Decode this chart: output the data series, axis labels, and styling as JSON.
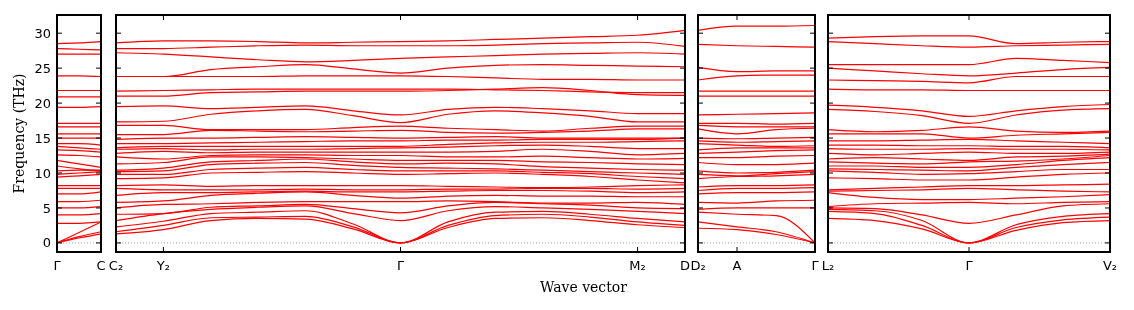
{
  "chart_data": [
    {
      "type": "line",
      "ylabel": "Frequency (THz)",
      "categories": [
        "Γ",
        null,
        "C"
      ],
      "ylim": [
        -1.3,
        32.6
      ],
      "yticks": [
        0,
        5,
        10,
        15,
        20,
        25,
        30
      ],
      "ref_lines": [
        {
          "axis": "y",
          "value": 0,
          "label": null,
          "color": "#8080ff",
          "line_style": "dotted"
        }
      ],
      "series": [
        {
          "color": "#ff0000",
          "values": [
            0,
            0.7,
            1.3
          ]
        },
        {
          "color": "#ff0000",
          "values": [
            0,
            0.9,
            1.6
          ]
        },
        {
          "color": "#ff0000",
          "values": [
            0,
            1.5,
            3.0
          ]
        },
        {
          "color": "#ff0000",
          "values": [
            2.8,
            2.8,
            3.0
          ]
        },
        {
          "color": "#ff0000",
          "values": [
            4.0,
            4.0,
            4.2
          ]
        },
        {
          "color": "#ff0000",
          "values": [
            5.0,
            5.0,
            5.2
          ]
        },
        {
          "color": "#ff0000",
          "values": [
            5.9,
            5.9,
            6.1
          ]
        },
        {
          "color": "#ff0000",
          "values": [
            7.0,
            7.0,
            7.3
          ]
        },
        {
          "color": "#ff0000",
          "values": [
            7.8,
            7.8,
            7.8
          ]
        },
        {
          "color": "#ff0000",
          "values": [
            8.2,
            8.2,
            8.2
          ]
        },
        {
          "color": "#ff0000",
          "values": [
            9.4,
            9.6,
            9.8
          ]
        },
        {
          "color": "#ff0000",
          "values": [
            9.8,
            10.0,
            10.2
          ]
        },
        {
          "color": "#ff0000",
          "values": [
            10.3,
            10.4,
            10.4
          ]
        },
        {
          "color": "#ff0000",
          "values": [
            11.0,
            10.6,
            10.3
          ]
        },
        {
          "color": "#ff0000",
          "values": [
            11.8,
            11.3,
            10.8
          ]
        },
        {
          "color": "#ff0000",
          "values": [
            12.6,
            12.5,
            12.3
          ]
        },
        {
          "color": "#ff0000",
          "values": [
            13.3,
            13.2,
            13.0
          ]
        },
        {
          "color": "#ff0000",
          "values": [
            13.8,
            13.6,
            13.4
          ]
        },
        {
          "color": "#ff0000",
          "values": [
            14.2,
            14.2,
            14.0
          ]
        },
        {
          "color": "#ff0000",
          "values": [
            15.0,
            15.0,
            15.0
          ]
        },
        {
          "color": "#ff0000",
          "values": [
            15.6,
            15.6,
            15.6
          ]
        },
        {
          "color": "#ff0000",
          "values": [
            16.6,
            16.6,
            16.6
          ]
        },
        {
          "color": "#ff0000",
          "values": [
            17.1,
            17.1,
            17.1
          ]
        },
        {
          "color": "#ff0000",
          "values": [
            19.4,
            19.4,
            19.5
          ]
        },
        {
          "color": "#ff0000",
          "values": [
            20.9,
            20.9,
            20.9
          ]
        },
        {
          "color": "#ff0000",
          "values": [
            21.8,
            21.8,
            21.8
          ]
        },
        {
          "color": "#ff0000",
          "values": [
            23.9,
            23.9,
            23.8
          ]
        },
        {
          "color": "#ff0000",
          "values": [
            27.0,
            27.0,
            27.0
          ]
        },
        {
          "color": "#ff0000",
          "values": [
            27.8,
            27.7,
            27.6
          ]
        },
        {
          "color": "#ff0000",
          "values": [
            28.5,
            28.6,
            28.8
          ]
        }
      ]
    },
    {
      "type": "line",
      "xlabel": "Wave vector",
      "tick_labels": "x",
      "categories": [
        "C₂",
        "Y₂",
        null,
        null,
        null,
        null,
        "Γ",
        null,
        null,
        null,
        null,
        "M₂",
        "D"
      ],
      "ylim": [
        -1.3,
        32.6
      ],
      "yticks": [
        0,
        5,
        10,
        15,
        20,
        25,
        30
      ],
      "ref_lines": [
        {
          "axis": "y",
          "value": 0,
          "label": null,
          "color": "#8080ff",
          "line_style": "dotted"
        }
      ],
      "series": [
        {
          "color": "#ff0000",
          "values": [
            1.3,
            1.9,
            3.2,
            3.5,
            3.4,
            2.0,
            0,
            2.2,
            3.5,
            3.6,
            3.2,
            2.6,
            2.2
          ]
        },
        {
          "color": "#ff0000",
          "values": [
            1.6,
            2.5,
            3.6,
            3.7,
            3.8,
            2.3,
            0,
            2.5,
            3.9,
            4.1,
            3.7,
            3.0,
            2.5
          ]
        },
        {
          "color": "#ff0000",
          "values": [
            2.3,
            3.1,
            4.2,
            4.4,
            4.6,
            2.7,
            0,
            3.0,
            4.4,
            4.5,
            4.1,
            3.5,
            3.0
          ]
        },
        {
          "color": "#ff0000",
          "values": [
            3.2,
            4.2,
            4.8,
            5.1,
            5.3,
            4.2,
            3.2,
            4.6,
            5.2,
            5.0,
            4.8,
            4.5,
            4.2
          ]
        },
        {
          "color": "#ff0000",
          "values": [
            4.1,
            4.2,
            5.1,
            5.3,
            5.5,
            4.9,
            4.3,
            5.3,
            5.8,
            5.6,
            5.4,
            5.0,
            4.9
          ]
        },
        {
          "color": "#ff0000",
          "values": [
            5.0,
            5.5,
            5.6,
            5.8,
            5.9,
            5.9,
            5.9,
            6.0,
            5.9,
            5.7,
            5.7,
            5.8,
            5.5
          ]
        },
        {
          "color": "#ff0000",
          "values": [
            5.8,
            6.0,
            6.8,
            7.1,
            7.3,
            6.8,
            6.4,
            6.7,
            6.8,
            6.7,
            6.7,
            6.6,
            6.6
          ]
        },
        {
          "color": "#ff0000",
          "values": [
            6.8,
            7.2,
            7.2,
            7.3,
            7.4,
            7.3,
            7.3,
            7.4,
            7.5,
            7.5,
            7.4,
            7.2,
            7.3
          ]
        },
        {
          "color": "#ff0000",
          "values": [
            7.8,
            7.6,
            7.6,
            7.6,
            7.7,
            7.6,
            7.6,
            7.7,
            7.7,
            7.8,
            7.8,
            7.7,
            7.8
          ]
        },
        {
          "color": "#ff0000",
          "values": [
            8.2,
            8.3,
            8.1,
            8.2,
            8.2,
            8.2,
            8.2,
            8.1,
            8.0,
            7.9,
            8.0,
            8.2,
            8.3
          ]
        },
        {
          "color": "#ff0000",
          "values": [
            9.2,
            9.3,
            10.0,
            10.1,
            10.2,
            10.0,
            9.8,
            9.9,
            10.0,
            9.8,
            9.5,
            9.0,
            8.6
          ]
        },
        {
          "color": "#ff0000",
          "values": [
            9.8,
            9.8,
            10.5,
            10.7,
            10.8,
            10.5,
            10.3,
            10.3,
            10.3,
            10.1,
            9.9,
            9.5,
            9.2
          ]
        },
        {
          "color": "#ff0000",
          "values": [
            10.2,
            10.3,
            11.2,
            11.4,
            11.5,
            11.1,
            10.8,
            10.7,
            10.6,
            10.4,
            10.2,
            10.0,
            9.8
          ]
        },
        {
          "color": "#ff0000",
          "values": [
            10.4,
            10.7,
            11.6,
            11.8,
            12.0,
            11.6,
            11.3,
            11.4,
            11.3,
            10.9,
            10.7,
            10.5,
            10.4
          ]
        },
        {
          "color": "#ff0000",
          "values": [
            11.3,
            11.5,
            12.3,
            12.3,
            12.2,
            12.0,
            11.8,
            11.8,
            11.8,
            11.6,
            11.5,
            11.3,
            11.2
          ]
        },
        {
          "color": "#ff0000",
          "values": [
            12.3,
            12.0,
            12.5,
            12.6,
            12.6,
            12.5,
            12.5,
            12.3,
            12.3,
            12.4,
            12.2,
            12.0,
            12.1
          ]
        },
        {
          "color": "#ff0000",
          "values": [
            12.8,
            13.1,
            12.9,
            13.0,
            13.0,
            13.0,
            13.0,
            13.0,
            13.1,
            13.4,
            13.1,
            12.6,
            12.8
          ]
        },
        {
          "color": "#ff0000",
          "values": [
            13.4,
            13.5,
            13.3,
            13.4,
            13.4,
            13.5,
            13.6,
            13.7,
            13.9,
            14.0,
            13.8,
            13.5,
            13.5
          ]
        },
        {
          "color": "#ff0000",
          "values": [
            13.6,
            13.8,
            13.8,
            13.8,
            13.8,
            13.8,
            13.8,
            14.1,
            14.3,
            14.4,
            14.4,
            14.5,
            14.6
          ]
        },
        {
          "color": "#ff0000",
          "values": [
            14.2,
            14.2,
            14.3,
            14.4,
            14.5,
            14.6,
            14.6,
            14.7,
            14.7,
            14.8,
            14.8,
            14.8,
            15.0
          ]
        },
        {
          "color": "#ff0000",
          "values": [
            14.8,
            15.0,
            15.0,
            15.1,
            15.2,
            15.1,
            15.0,
            15.1,
            15.2,
            15.0,
            15.0,
            15.0,
            15.0
          ]
        },
        {
          "color": "#ff0000",
          "values": [
            15.5,
            15.5,
            16.1,
            16.0,
            15.9,
            16.0,
            16.1,
            15.8,
            15.7,
            15.8,
            16.0,
            16.3,
            16.3
          ]
        },
        {
          "color": "#ff0000",
          "values": [
            16.8,
            16.8,
            16.2,
            16.2,
            16.2,
            16.5,
            16.7,
            16.4,
            16.2,
            16.0,
            16.4,
            16.7,
            16.7
          ]
        },
        {
          "color": "#ff0000",
          "values": [
            17.3,
            17.4,
            18.4,
            18.9,
            19.1,
            18.2,
            17.2,
            18.4,
            18.9,
            18.6,
            18.1,
            17.3,
            17.3
          ]
        },
        {
          "color": "#ff0000",
          "values": [
            19.5,
            19.6,
            19.2,
            19.4,
            19.6,
            18.9,
            18.3,
            19.1,
            19.4,
            19.2,
            18.9,
            18.5,
            18.5
          ]
        },
        {
          "color": "#ff0000",
          "values": [
            21.0,
            21.0,
            21.5,
            21.6,
            21.7,
            21.7,
            21.7,
            21.8,
            22.0,
            22.2,
            21.8,
            21.2,
            21.1
          ]
        },
        {
          "color": "#ff0000",
          "values": [
            21.7,
            21.8,
            21.9,
            22.0,
            22.0,
            22.0,
            22.0,
            22.0,
            21.9,
            21.8,
            21.6,
            21.5,
            21.5
          ]
        },
        {
          "color": "#ff0000",
          "values": [
            23.8,
            23.8,
            23.8,
            23.8,
            23.9,
            23.9,
            23.9,
            23.8,
            23.6,
            23.4,
            23.4,
            23.3,
            23.3
          ]
        },
        {
          "color": "#ff0000",
          "values": [
            23.8,
            23.8,
            24.8,
            25.2,
            25.5,
            24.9,
            24.3,
            25.0,
            25.4,
            25.5,
            25.4,
            25.3,
            25.2
          ]
        },
        {
          "color": "#ff0000",
          "values": [
            27.2,
            27.0,
            26.6,
            26.2,
            25.9,
            26.1,
            26.4,
            26.6,
            26.8,
            27.0,
            27.1,
            27.2,
            27.0
          ]
        },
        {
          "color": "#ff0000",
          "values": [
            27.8,
            27.8,
            28.0,
            28.2,
            28.3,
            28.2,
            28.2,
            28.2,
            28.3,
            28.5,
            28.6,
            28.7,
            28.1
          ]
        },
        {
          "color": "#ff0000",
          "values": [
            28.6,
            28.9,
            28.9,
            28.8,
            28.6,
            28.7,
            28.8,
            28.9,
            29.1,
            29.3,
            29.5,
            29.7,
            30.4
          ]
        }
      ]
    },
    {
      "type": "line",
      "tick_labels": "x",
      "categories": [
        "D₂",
        "A",
        null,
        "Γ"
      ],
      "ylim": [
        -1.3,
        32.6
      ],
      "yticks": [
        0,
        5,
        10,
        15,
        20,
        25,
        30
      ],
      "ref_lines": [
        {
          "axis": "y",
          "value": 0,
          "label": null,
          "color": "#8080ff",
          "line_style": "dotted"
        }
      ],
      "series": [
        {
          "color": "#ff0000",
          "values": [
            2.1,
            1.9,
            1.2,
            0
          ]
        },
        {
          "color": "#ff0000",
          "values": [
            3.0,
            2.3,
            1.6,
            0
          ]
        },
        {
          "color": "#ff0000",
          "values": [
            4.4,
            4.1,
            3.9,
            0
          ]
        },
        {
          "color": "#ff0000",
          "values": [
            4.8,
            5.0,
            5.0,
            5.0
          ]
        },
        {
          "color": "#ff0000",
          "values": [
            5.8,
            5.7,
            6.0,
            6.1
          ]
        },
        {
          "color": "#ff0000",
          "values": [
            7.0,
            7.2,
            7.2,
            7.3
          ]
        },
        {
          "color": "#ff0000",
          "values": [
            7.5,
            7.8,
            7.8,
            7.9
          ]
        },
        {
          "color": "#ff0000",
          "values": [
            8.0,
            8.2,
            8.2,
            8.3
          ]
        },
        {
          "color": "#ff0000",
          "values": [
            9.2,
            9.5,
            9.6,
            9.8
          ]
        },
        {
          "color": "#ff0000",
          "values": [
            9.8,
            9.6,
            9.9,
            10.2
          ]
        },
        {
          "color": "#ff0000",
          "values": [
            10.3,
            10.0,
            10.1,
            10.4
          ]
        },
        {
          "color": "#ff0000",
          "values": [
            11.5,
            11.2,
            11.2,
            11.4
          ]
        },
        {
          "color": "#ff0000",
          "values": [
            12.2,
            12.2,
            12.4,
            12.5
          ]
        },
        {
          "color": "#ff0000",
          "values": [
            12.8,
            13.0,
            13.2,
            13.3
          ]
        },
        {
          "color": "#ff0000",
          "values": [
            13.3,
            13.6,
            13.6,
            13.6
          ]
        },
        {
          "color": "#ff0000",
          "values": [
            14.2,
            14.0,
            13.8,
            13.9
          ]
        },
        {
          "color": "#ff0000",
          "values": [
            14.6,
            14.4,
            14.5,
            14.6
          ]
        },
        {
          "color": "#ff0000",
          "values": [
            15.0,
            14.9,
            15.0,
            15.1
          ]
        },
        {
          "color": "#ff0000",
          "values": [
            16.3,
            15.6,
            16.2,
            16.4
          ]
        },
        {
          "color": "#ff0000",
          "values": [
            16.8,
            16.6,
            16.6,
            16.6
          ]
        },
        {
          "color": "#ff0000",
          "values": [
            17.1,
            17.1,
            17.0,
            17.1
          ]
        },
        {
          "color": "#ff0000",
          "values": [
            18.3,
            18.4,
            18.5,
            18.6
          ]
        },
        {
          "color": "#ff0000",
          "values": [
            21.0,
            21.0,
            21.0,
            21.0
          ]
        },
        {
          "color": "#ff0000",
          "values": [
            21.7,
            21.7,
            21.7,
            21.7
          ]
        },
        {
          "color": "#ff0000",
          "values": [
            23.3,
            23.9,
            24.0,
            24.0
          ]
        },
        {
          "color": "#ff0000",
          "values": [
            25.1,
            24.5,
            24.6,
            24.6
          ]
        },
        {
          "color": "#ff0000",
          "values": [
            28.4,
            28.2,
            28.1,
            28.0
          ]
        },
        {
          "color": "#ff0000",
          "values": [
            30.4,
            31.0,
            31.0,
            31.1
          ]
        }
      ]
    },
    {
      "type": "line",
      "tick_labels": "x",
      "categories": [
        "L₂",
        null,
        null,
        "Γ",
        null,
        null,
        "V₂"
      ],
      "ylim": [
        -1.3,
        32.6
      ],
      "yticks": [
        0,
        5,
        10,
        15,
        20,
        25,
        30
      ],
      "ref_lines": [
        {
          "axis": "y",
          "value": 0,
          "label": null,
          "color": "#8080ff",
          "line_style": "dotted"
        }
      ],
      "series": [
        {
          "color": "#ff0000",
          "values": [
            3.5,
            3.2,
            2.0,
            0,
            1.8,
            2.9,
            3.2
          ]
        },
        {
          "color": "#ff0000",
          "values": [
            4.5,
            4.2,
            2.5,
            0,
            2.2,
            3.3,
            3.7
          ]
        },
        {
          "color": "#ff0000",
          "values": [
            4.8,
            4.6,
            3.2,
            0,
            2.6,
            3.8,
            4.2
          ]
        },
        {
          "color": "#ff0000",
          "values": [
            5.0,
            4.9,
            4.0,
            2.8,
            4.0,
            5.3,
            5.6
          ]
        },
        {
          "color": "#ff0000",
          "values": [
            5.2,
            5.6,
            5.7,
            5.8,
            5.6,
            5.8,
            5.9
          ]
        },
        {
          "color": "#ff0000",
          "values": [
            7.2,
            6.5,
            6.2,
            6.2,
            6.4,
            6.6,
            6.9
          ]
        },
        {
          "color": "#ff0000",
          "values": [
            7.4,
            7.5,
            7.6,
            7.8,
            7.6,
            7.4,
            7.3
          ]
        },
        {
          "color": "#ff0000",
          "values": [
            7.6,
            7.8,
            8.0,
            8.2,
            8.2,
            8.3,
            8.4
          ]
        },
        {
          "color": "#ff0000",
          "values": [
            9.3,
            9.2,
            9.0,
            9.0,
            9.4,
            9.8,
            10.0
          ]
        },
        {
          "color": "#ff0000",
          "values": [
            10.3,
            10.1,
            9.8,
            9.9,
            10.2,
            10.5,
            10.5
          ]
        },
        {
          "color": "#ff0000",
          "values": [
            10.6,
            10.5,
            10.4,
            10.3,
            10.8,
            11.2,
            11.5
          ]
        },
        {
          "color": "#ff0000",
          "values": [
            11.0,
            11.0,
            10.8,
            10.8,
            11.2,
            11.8,
            12.2
          ]
        },
        {
          "color": "#ff0000",
          "values": [
            11.6,
            11.4,
            11.3,
            11.6,
            11.7,
            12.0,
            12.5
          ]
        },
        {
          "color": "#ff0000",
          "values": [
            12.0,
            12.2,
            12.0,
            11.8,
            12.3,
            12.4,
            12.7
          ]
        },
        {
          "color": "#ff0000",
          "values": [
            12.8,
            12.6,
            12.8,
            13.0,
            12.8,
            12.8,
            13.0
          ]
        },
        {
          "color": "#ff0000",
          "values": [
            13.5,
            13.4,
            13.4,
            13.5,
            13.4,
            13.4,
            13.3
          ]
        },
        {
          "color": "#ff0000",
          "values": [
            14.0,
            14.0,
            13.9,
            13.9,
            13.8,
            13.8,
            13.6
          ]
        },
        {
          "color": "#ff0000",
          "values": [
            14.6,
            14.6,
            14.7,
            14.8,
            14.6,
            14.4,
            14.2
          ]
        },
        {
          "color": "#ff0000",
          "values": [
            15.6,
            15.6,
            15.6,
            15.0,
            15.4,
            15.6,
            15.8
          ]
        },
        {
          "color": "#ff0000",
          "values": [
            16.2,
            15.9,
            16.1,
            16.6,
            16.0,
            15.8,
            16.0
          ]
        },
        {
          "color": "#ff0000",
          "values": [
            19.1,
            18.8,
            18.2,
            17.1,
            18.3,
            19.0,
            19.2
          ]
        },
        {
          "color": "#ff0000",
          "values": [
            19.7,
            19.4,
            18.9,
            18.1,
            18.9,
            19.5,
            19.8
          ]
        },
        {
          "color": "#ff0000",
          "values": [
            22.0,
            21.9,
            21.9,
            21.8,
            21.8,
            21.8,
            21.8
          ]
        },
        {
          "color": "#ff0000",
          "values": [
            23.3,
            23.2,
            23.1,
            22.9,
            23.8,
            23.8,
            23.8
          ]
        },
        {
          "color": "#ff0000",
          "values": [
            25.0,
            24.6,
            24.2,
            23.9,
            24.3,
            24.8,
            25.1
          ]
        },
        {
          "color": "#ff0000",
          "values": [
            25.5,
            25.5,
            25.5,
            25.5,
            26.4,
            26.1,
            25.8
          ]
        },
        {
          "color": "#ff0000",
          "values": [
            28.8,
            28.5,
            28.2,
            28.0,
            28.2,
            28.3,
            28.4
          ]
        },
        {
          "color": "#ff0000",
          "values": [
            29.3,
            29.5,
            29.6,
            29.6,
            28.5,
            28.7,
            28.8
          ]
        }
      ]
    }
  ]
}
